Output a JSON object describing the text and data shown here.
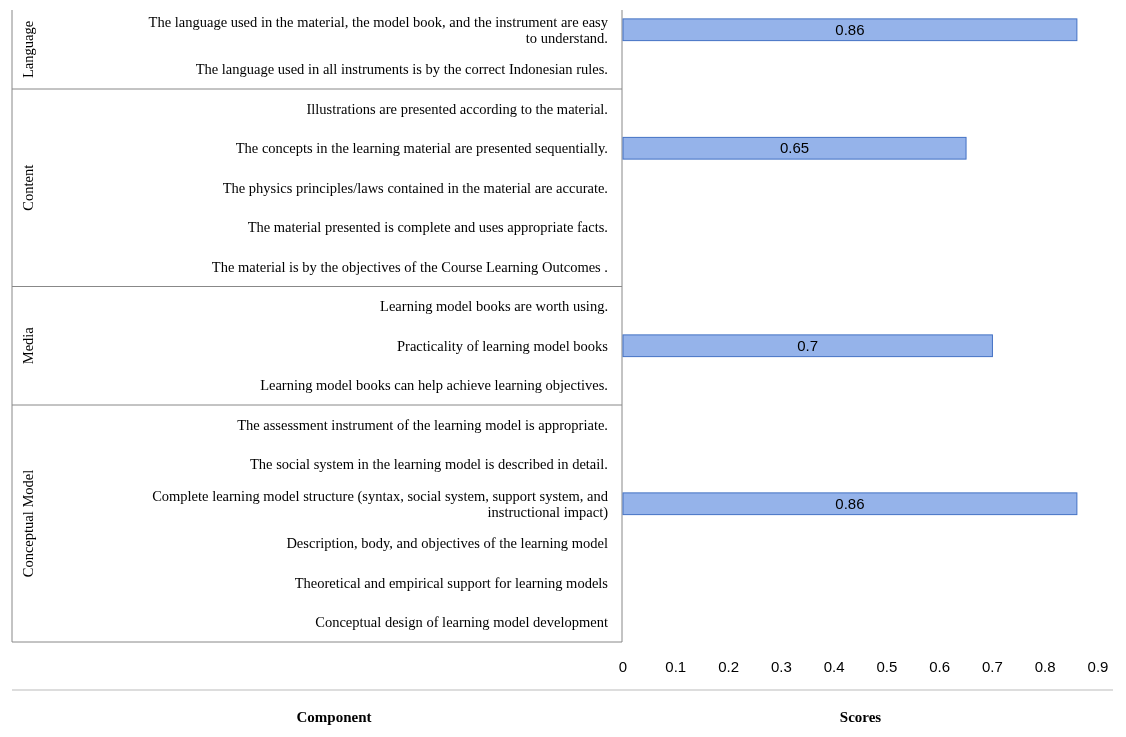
{
  "chart_data": {
    "type": "bar",
    "orientation": "horizontal",
    "xlabel": "Scores",
    "ylabel": "Component",
    "categories": [
      "The language used in the material, the model book, and the instrument are easy to understand.",
      "The language used in all instruments is by the correct Indonesian rules.",
      "Illustrations are presented according to the material.",
      "The concepts in the learning material are presented sequentially.",
      "The physics principles/laws contained in the material are accurate.",
      "The material presented is complete and uses appropriate facts.",
      "The material is by the objectives of the Course Learning Outcomes .",
      "Learning model books are worth using.",
      "Practicality of learning model books",
      "Learning model books can help achieve learning objectives.",
      "The assessment instrument of the learning model is appropriate.",
      "The social system in the learning model is described in detail.",
      "Complete learning model structure (syntax, social system, support system, and instructional impact)",
      "Description, body, and objectives of the learning model",
      "Theoretical and empirical support for learning models",
      "Conceptual design of learning model development"
    ],
    "values": [
      0.86,
      null,
      null,
      0.65,
      null,
      null,
      null,
      null,
      0.7,
      null,
      null,
      null,
      0.86,
      null,
      null,
      null
    ],
    "color": "#95b3ea",
    "data_labels": true,
    "xlim": [
      0,
      0.9
    ],
    "xticks": [
      0,
      0.1,
      0.2,
      0.3,
      0.4,
      0.5,
      0.6,
      0.7,
      0.8,
      0.9
    ],
    "annotations": [
      "Language",
      "Content",
      "Media",
      "Conceptual Model"
    ],
    "grid": false
  }
}
